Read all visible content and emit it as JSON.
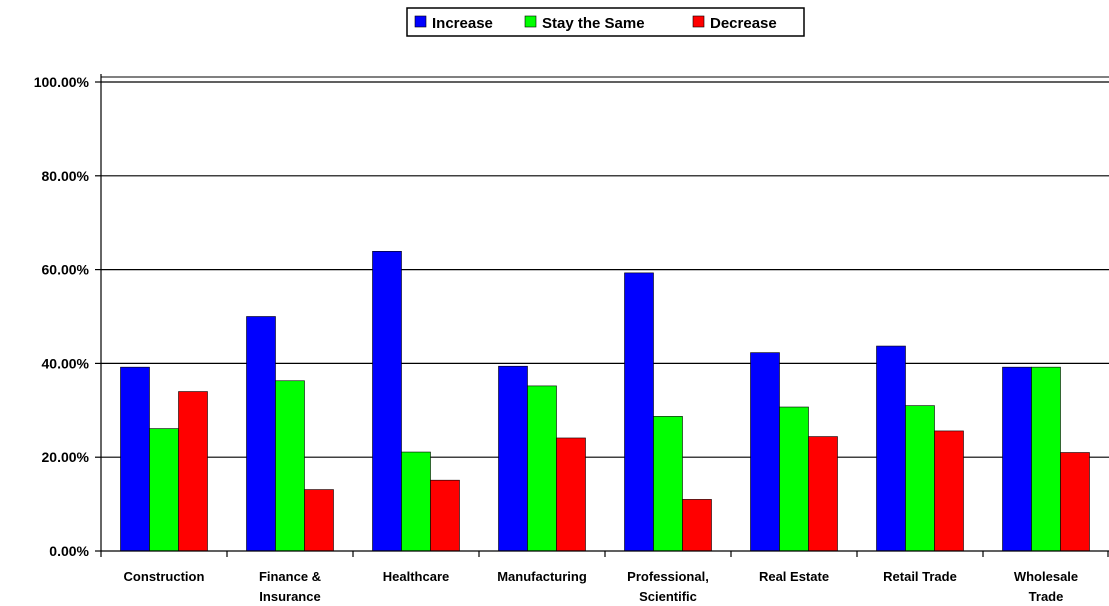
{
  "chart_data": {
    "type": "bar",
    "categories": [
      "Construction",
      "Finance & Insurance",
      "Healthcare",
      "Manufacturing",
      "Professional, Scientific",
      "Real Estate",
      "Retail Trade",
      "Wholesale Trade"
    ],
    "category_lines": [
      [
        "Construction"
      ],
      [
        "Finance &",
        "Insurance"
      ],
      [
        "Healthcare"
      ],
      [
        "Manufacturing"
      ],
      [
        "Professional,",
        "Scientific"
      ],
      [
        "Real Estate"
      ],
      [
        "Retail Trade"
      ],
      [
        "Wholesale",
        "Trade"
      ]
    ],
    "series": [
      {
        "name": "Increase",
        "color": "#0000ff",
        "values": [
          0.392,
          0.5,
          0.639,
          0.394,
          0.593,
          0.423,
          0.437,
          0.392
        ]
      },
      {
        "name": "Stay the Same",
        "color": "#00ff00",
        "values": [
          0.261,
          0.363,
          0.211,
          0.352,
          0.287,
          0.307,
          0.31,
          0.392
        ]
      },
      {
        "name": "Decrease",
        "color": "#ff0000",
        "values": [
          0.34,
          0.131,
          0.151,
          0.241,
          0.11,
          0.244,
          0.256,
          0.21
        ]
      }
    ],
    "ylim": [
      0,
      1
    ],
    "yticks": [
      0,
      0.2,
      0.4,
      0.6,
      0.8,
      1.0
    ],
    "ytick_labels": [
      "0.00%",
      "20.00%",
      "40.00%",
      "60.00%",
      "80.00%",
      "100.00%"
    ],
    "title": "",
    "xlabel": "",
    "ylabel": "",
    "legend_position": "top-center",
    "grid": true
  }
}
